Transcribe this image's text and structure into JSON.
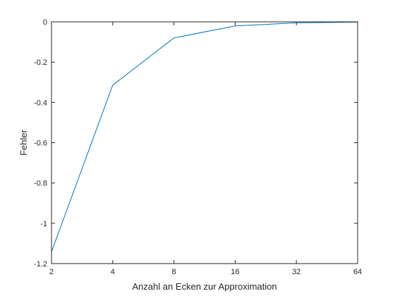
{
  "chart_data": {
    "type": "line",
    "title": "",
    "xlabel": "Anzahl an Ecken zur Approximation",
    "ylabel": "Fehler",
    "x_scale": "log2",
    "xlim": [
      2,
      64
    ],
    "ylim": [
      -1.2,
      0
    ],
    "x_ticks": [
      "2",
      "4",
      "8",
      "16",
      "32",
      "64"
    ],
    "y_ticks": [
      "0",
      "-0.2",
      "-0.4",
      "-0.6",
      "-0.8",
      "-1",
      "-1.2"
    ],
    "grid": false,
    "series": [
      {
        "color": "#0072bd",
        "x": [
          2,
          4,
          8,
          16,
          32,
          64
        ],
        "y": [
          -1.1416,
          -0.3142,
          -0.0801,
          -0.0201,
          -0.005,
          -0.0013
        ]
      }
    ]
  }
}
